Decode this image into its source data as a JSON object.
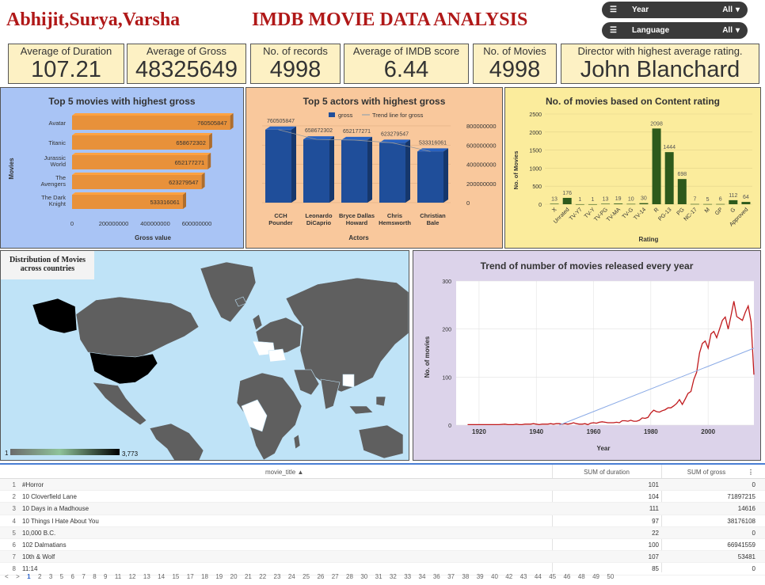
{
  "header": {
    "authors": "Abhijit,Surya,Varsha",
    "title": "IMDB MOVIE DATA ANALYSIS",
    "filters": [
      {
        "label": "Year",
        "value": "All"
      },
      {
        "label": "Language",
        "value": "All"
      }
    ]
  },
  "kpis": [
    {
      "label": "Average of Duration",
      "value": "107.21"
    },
    {
      "label": "Average of Gross",
      "value": "48325649"
    },
    {
      "label": "No. of records",
      "value": "4998"
    },
    {
      "label": "Average of IMDB score",
      "value": "6.44"
    },
    {
      "label": "No. of Movies",
      "value": "4998"
    },
    {
      "label": "Director with highest average rating.",
      "value": "John Blanchard"
    }
  ],
  "chart_data": [
    {
      "type": "bar",
      "orientation": "horizontal",
      "title": "Top 5 movies with highest gross",
      "categories": [
        "Avatar",
        "Titanic",
        "Jurassic World",
        "The Avengers",
        "The Dark Knight"
      ],
      "values": [
        760505847,
        658672302,
        652177271,
        623279547,
        533316061
      ],
      "xlabel": "Gross value",
      "ylabel": "Movies",
      "xticks": [
        "0",
        "200000000",
        "400000000",
        "600000000"
      ],
      "xlim": [
        0,
        800000000
      ],
      "color": "#e8913a"
    },
    {
      "type": "bar",
      "title": "Top 5 actors with highest gross",
      "categories": [
        "CCH Pounder",
        "Leonardo DiCaprio",
        "Bryce Dallas Howard",
        "Chris Hemsworth",
        "Christian Bale"
      ],
      "values": [
        760505847,
        658672302,
        652177271,
        623279547,
        533316061
      ],
      "legend": [
        "gross",
        "Trend line for gross"
      ],
      "legend_position": "top",
      "xlabel": "Actors",
      "yticks": [
        "0",
        "200000000",
        "400000000",
        "600000000",
        "800000000"
      ],
      "ylim": [
        0,
        800000000
      ],
      "color": "#1f4e9a"
    },
    {
      "type": "bar",
      "title": "No. of movies based on Content rating",
      "categories": [
        "X",
        "Unrated",
        "TV-Y7",
        "TV-Y",
        "TV-PG",
        "TV-MA",
        "TV-G",
        "TV-14",
        "R",
        "PG-13",
        "PG",
        "NC-17",
        "M",
        "GP",
        "G",
        "Approved"
      ],
      "values": [
        13,
        176,
        1,
        1,
        13,
        19,
        10,
        30,
        2098,
        1444,
        698,
        7,
        5,
        6,
        112,
        64
      ],
      "xlabel": "Rating",
      "ylabel": "No. of Movies",
      "yticks": [
        "0",
        "500",
        "1000",
        "1500",
        "2000",
        "2500"
      ],
      "ylim": [
        0,
        2500
      ],
      "color": "#2e5a1c"
    },
    {
      "type": "line",
      "title": "Trend of number of movies released every year",
      "xlabel": "Year",
      "ylabel": "No. of movies",
      "xlim": [
        1912,
        2016
      ],
      "ylim": [
        0,
        300
      ],
      "xticks": [
        "1920",
        "1940",
        "1960",
        "1980",
        "2000"
      ],
      "yticks": [
        "0",
        "100",
        "200",
        "300"
      ],
      "series": [
        {
          "values": [
            [
              1916,
              1
            ],
            [
              1920,
              1
            ],
            [
              1925,
              1
            ],
            [
              1927,
              1
            ],
            [
              1929,
              2
            ],
            [
              1930,
              1
            ],
            [
              1932,
              1
            ],
            [
              1933,
              2
            ],
            [
              1934,
              1
            ],
            [
              1935,
              1
            ],
            [
              1936,
              2
            ],
            [
              1937,
              2
            ],
            [
              1938,
              2
            ],
            [
              1939,
              3
            ],
            [
              1940,
              2
            ],
            [
              1941,
              1
            ],
            [
              1942,
              2
            ],
            [
              1944,
              2
            ],
            [
              1945,
              3
            ],
            [
              1946,
              2
            ],
            [
              1947,
              3
            ],
            [
              1948,
              3
            ],
            [
              1949,
              2
            ],
            [
              1950,
              3
            ],
            [
              1951,
              2
            ],
            [
              1952,
              3
            ],
            [
              1953,
              5
            ],
            [
              1954,
              3
            ],
            [
              1955,
              2
            ],
            [
              1956,
              2
            ],
            [
              1957,
              3
            ],
            [
              1958,
              1
            ],
            [
              1959,
              4
            ],
            [
              1960,
              5
            ],
            [
              1961,
              4
            ],
            [
              1962,
              6
            ],
            [
              1963,
              7
            ],
            [
              1964,
              6
            ],
            [
              1965,
              5
            ],
            [
              1966,
              5
            ],
            [
              1967,
              5
            ],
            [
              1968,
              6
            ],
            [
              1969,
              5
            ],
            [
              1970,
              9
            ],
            [
              1971,
              9
            ],
            [
              1972,
              8
            ],
            [
              1973,
              10
            ],
            [
              1974,
              8
            ],
            [
              1975,
              8
            ],
            [
              1976,
              10
            ],
            [
              1977,
              15
            ],
            [
              1978,
              14
            ],
            [
              1979,
              16
            ],
            [
              1980,
              25
            ],
            [
              1981,
              31
            ],
            [
              1982,
              28
            ],
            [
              1983,
              27
            ],
            [
              1984,
              30
            ],
            [
              1985,
              32
            ],
            [
              1986,
              36
            ],
            [
              1987,
              36
            ],
            [
              1988,
              40
            ],
            [
              1989,
              45
            ],
            [
              1990,
              53
            ],
            [
              1991,
              43
            ],
            [
              1992,
              54
            ],
            [
              1993,
              66
            ],
            [
              1994,
              70
            ],
            [
              1995,
              95
            ],
            [
              1996,
              110
            ],
            [
              1997,
              150
            ],
            [
              1998,
              170
            ],
            [
              1999,
              175
            ],
            [
              2000,
              160
            ],
            [
              2001,
              190
            ],
            [
              2002,
              195
            ],
            [
              2003,
              182
            ],
            [
              2004,
              200
            ],
            [
              2005,
              218
            ],
            [
              2006,
              225
            ],
            [
              2007,
              200
            ],
            [
              2008,
              228
            ],
            [
              2009,
              258
            ],
            [
              2010,
              226
            ],
            [
              2011,
              222
            ],
            [
              2012,
              218
            ],
            [
              2013,
              235
            ],
            [
              2014,
              248
            ],
            [
              2015,
              215
            ],
            [
              2016,
              105
            ]
          ]
        },
        {
          "values": [
            [
              1948,
              0
            ],
            [
              2016,
              160
            ]
          ]
        }
      ],
      "colors": [
        "#c0191c",
        "#8aaae6"
      ]
    },
    {
      "type": "heatmap",
      "subtype": "choropleth",
      "title": "Distribution of Movies across countries",
      "scale_min": "1",
      "scale_max": "3,773"
    }
  ],
  "table": {
    "columns": [
      "movie_title",
      "SUM of duration",
      "SUM of gross"
    ],
    "rows": [
      {
        "idx": "1",
        "title": "#Horror",
        "duration": "101",
        "gross": "0"
      },
      {
        "idx": "2",
        "title": "10 Cloverfield Lane",
        "duration": "104",
        "gross": "71897215"
      },
      {
        "idx": "3",
        "title": "10 Days in a Madhouse",
        "duration": "111",
        "gross": "14616"
      },
      {
        "idx": "4",
        "title": "10 Things I Hate About You",
        "duration": "97",
        "gross": "38176108"
      },
      {
        "idx": "5",
        "title": "10,000 B.C.",
        "duration": "22",
        "gross": "0"
      },
      {
        "idx": "6",
        "title": "102 Dalmatians",
        "duration": "100",
        "gross": "66941559"
      },
      {
        "idx": "7",
        "title": "10th & Wolf",
        "duration": "107",
        "gross": "53481"
      },
      {
        "idx": "8",
        "title": "11:14",
        "duration": "85",
        "gross": "0"
      }
    ],
    "pages": [
      "<",
      ">",
      "1",
      "2",
      "3",
      "5",
      "6",
      "7",
      "8",
      "9",
      "11",
      "12",
      "13",
      "14",
      "15",
      "17",
      "18",
      "19",
      "20",
      "21",
      "22",
      "23",
      "24",
      "25",
      "26",
      "27",
      "28",
      "30",
      "31",
      "32",
      "33",
      "34",
      "36",
      "37",
      "38",
      "39",
      "40",
      "42",
      "43",
      "44",
      "45",
      "46",
      "48",
      "49",
      "50"
    ],
    "current_page": "1"
  }
}
